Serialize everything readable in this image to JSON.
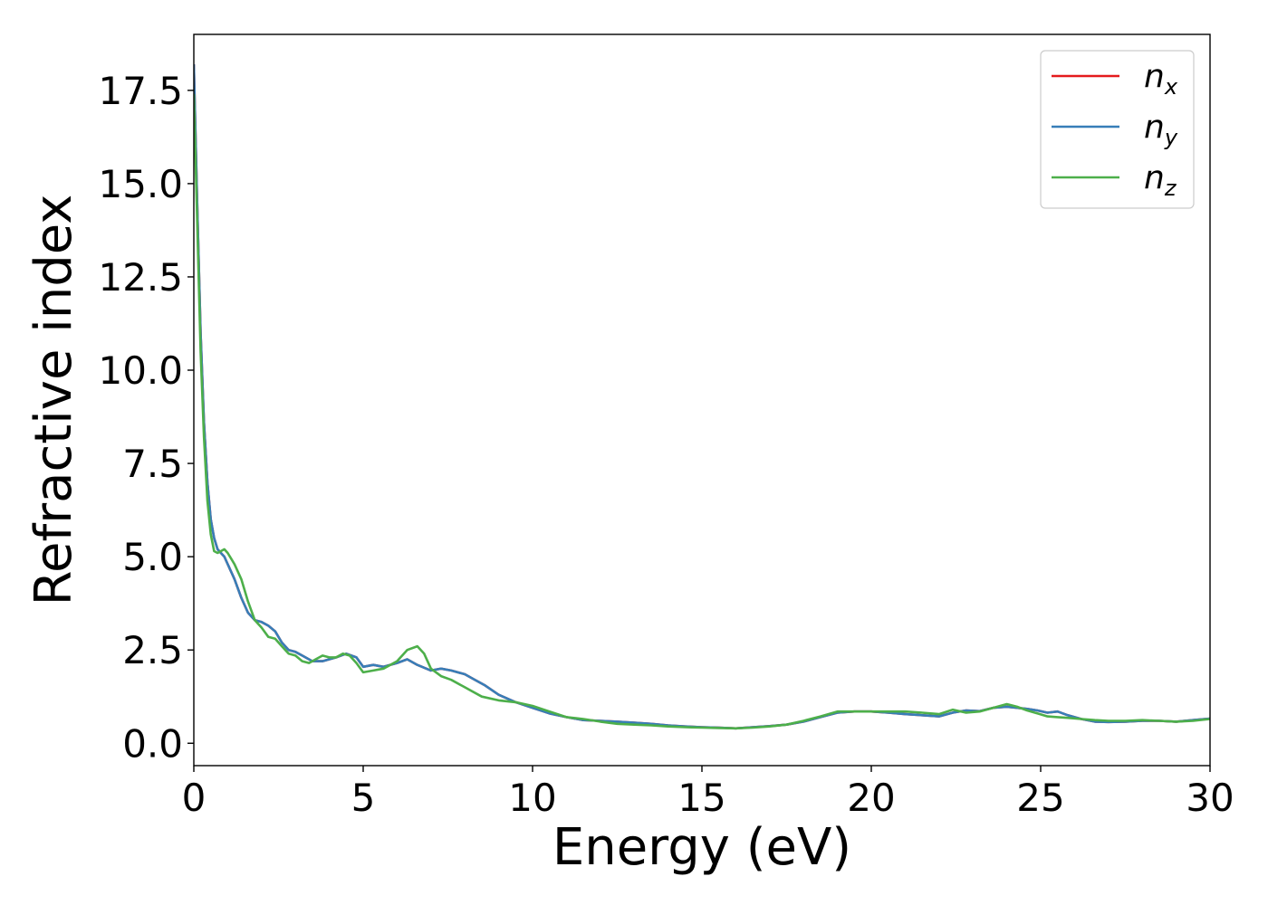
{
  "chart_data": {
    "type": "line",
    "title": "",
    "xlabel": "Energy (eV)",
    "ylabel": "Refractive index",
    "xlim": [
      0,
      30
    ],
    "ylim": [
      -0.6,
      19.0
    ],
    "xticks": [
      0,
      5,
      10,
      15,
      20,
      25,
      30
    ],
    "xtick_labels": [
      "0",
      "5",
      "10",
      "15",
      "20",
      "25",
      "30"
    ],
    "yticks": [
      0.0,
      2.5,
      5.0,
      7.5,
      10.0,
      12.5,
      15.0,
      17.5
    ],
    "ytick_labels": [
      "0.0",
      "2.5",
      "5.0",
      "7.5",
      "10.0",
      "12.5",
      "15.0",
      "17.5"
    ],
    "grid": false,
    "legend_position": "top-right",
    "series": [
      {
        "name": "n",
        "subscript": "x",
        "color": "#e41a1c",
        "x": [
          0,
          0.1,
          0.2,
          0.3,
          0.4,
          0.5,
          0.6,
          0.7,
          0.8,
          0.9,
          1.0,
          1.2,
          1.4,
          1.6,
          1.8,
          2.0,
          2.2,
          2.4,
          2.6,
          2.8,
          3.0,
          3.2,
          3.5,
          3.8,
          4.0,
          4.2,
          4.5,
          4.8,
          5.0,
          5.3,
          5.6,
          6.0,
          6.3,
          6.6,
          7.0,
          7.3,
          7.6,
          8.0,
          8.3,
          8.6,
          9.0,
          9.5,
          10.0,
          10.5,
          11.0,
          11.5,
          12.0,
          12.5,
          13.0,
          13.5,
          14.0,
          14.5,
          15.0,
          15.5,
          16.0,
          16.5,
          17.0,
          17.5,
          18.0,
          18.5,
          19.0,
          19.5,
          20.0,
          20.5,
          21.0,
          21.5,
          22.0,
          22.4,
          22.8,
          23.2,
          23.6,
          24.0,
          24.3,
          24.6,
          24.9,
          25.2,
          25.5,
          25.8,
          26.2,
          26.6,
          27.0,
          27.5,
          28.0,
          28.5,
          29.0,
          29.5,
          30.0
        ],
        "y": [
          18.2,
          14.5,
          11.0,
          8.6,
          7.0,
          6.0,
          5.5,
          5.2,
          5.1,
          5.0,
          4.8,
          4.4,
          3.9,
          3.5,
          3.3,
          3.25,
          3.15,
          3.0,
          2.7,
          2.5,
          2.45,
          2.35,
          2.2,
          2.2,
          2.25,
          2.3,
          2.4,
          2.3,
          2.05,
          2.1,
          2.05,
          2.15,
          2.25,
          2.1,
          1.95,
          2.0,
          1.95,
          1.85,
          1.7,
          1.55,
          1.3,
          1.1,
          0.95,
          0.8,
          0.7,
          0.62,
          0.6,
          0.58,
          0.55,
          0.52,
          0.48,
          0.45,
          0.43,
          0.42,
          0.4,
          0.43,
          0.46,
          0.5,
          0.58,
          0.7,
          0.82,
          0.85,
          0.85,
          0.82,
          0.78,
          0.75,
          0.72,
          0.82,
          0.88,
          0.86,
          0.95,
          0.98,
          0.95,
          0.92,
          0.88,
          0.82,
          0.85,
          0.75,
          0.65,
          0.58,
          0.57,
          0.58,
          0.6,
          0.6,
          0.58,
          0.62,
          0.66
        ]
      },
      {
        "name": "n",
        "subscript": "y",
        "color": "#377eb8",
        "x": [
          0,
          0.1,
          0.2,
          0.3,
          0.4,
          0.5,
          0.6,
          0.7,
          0.8,
          0.9,
          1.0,
          1.2,
          1.4,
          1.6,
          1.8,
          2.0,
          2.2,
          2.4,
          2.6,
          2.8,
          3.0,
          3.2,
          3.5,
          3.8,
          4.0,
          4.2,
          4.5,
          4.8,
          5.0,
          5.3,
          5.6,
          6.0,
          6.3,
          6.6,
          7.0,
          7.3,
          7.6,
          8.0,
          8.3,
          8.6,
          9.0,
          9.5,
          10.0,
          10.5,
          11.0,
          11.5,
          12.0,
          12.5,
          13.0,
          13.5,
          14.0,
          14.5,
          15.0,
          15.5,
          16.0,
          16.5,
          17.0,
          17.5,
          18.0,
          18.5,
          19.0,
          19.5,
          20.0,
          20.5,
          21.0,
          21.5,
          22.0,
          22.4,
          22.8,
          23.2,
          23.6,
          24.0,
          24.3,
          24.6,
          24.9,
          25.2,
          25.5,
          25.8,
          26.2,
          26.6,
          27.0,
          27.5,
          28.0,
          28.5,
          29.0,
          29.5,
          30.0
        ],
        "y": [
          18.2,
          14.5,
          11.0,
          8.6,
          7.0,
          6.0,
          5.5,
          5.2,
          5.1,
          5.0,
          4.8,
          4.4,
          3.9,
          3.5,
          3.3,
          3.25,
          3.15,
          3.0,
          2.7,
          2.5,
          2.45,
          2.35,
          2.2,
          2.2,
          2.25,
          2.3,
          2.4,
          2.3,
          2.05,
          2.1,
          2.05,
          2.15,
          2.25,
          2.1,
          1.95,
          2.0,
          1.95,
          1.85,
          1.7,
          1.55,
          1.3,
          1.1,
          0.95,
          0.8,
          0.7,
          0.62,
          0.6,
          0.58,
          0.55,
          0.52,
          0.48,
          0.45,
          0.43,
          0.42,
          0.4,
          0.43,
          0.46,
          0.5,
          0.58,
          0.7,
          0.82,
          0.85,
          0.85,
          0.82,
          0.78,
          0.75,
          0.72,
          0.82,
          0.88,
          0.86,
          0.95,
          0.98,
          0.95,
          0.92,
          0.88,
          0.82,
          0.85,
          0.75,
          0.65,
          0.58,
          0.57,
          0.58,
          0.6,
          0.6,
          0.58,
          0.62,
          0.66
        ]
      },
      {
        "name": "n",
        "subscript": "z",
        "color": "#4daf4a",
        "x": [
          0,
          0.1,
          0.2,
          0.3,
          0.4,
          0.5,
          0.6,
          0.7,
          0.8,
          0.9,
          1.0,
          1.2,
          1.4,
          1.6,
          1.8,
          2.0,
          2.2,
          2.4,
          2.6,
          2.8,
          3.0,
          3.2,
          3.4,
          3.6,
          3.8,
          4.0,
          4.2,
          4.4,
          4.6,
          4.8,
          5.0,
          5.3,
          5.6,
          6.0,
          6.3,
          6.6,
          6.8,
          7.0,
          7.3,
          7.6,
          8.0,
          8.5,
          9.0,
          9.5,
          10.0,
          10.5,
          11.0,
          11.5,
          12.0,
          12.5,
          13.0,
          13.5,
          14.0,
          14.5,
          15.0,
          15.5,
          16.0,
          16.5,
          17.0,
          17.5,
          18.0,
          18.5,
          19.0,
          19.5,
          20.0,
          20.5,
          21.0,
          21.5,
          22.0,
          22.4,
          22.8,
          23.2,
          23.6,
          24.0,
          24.3,
          24.6,
          24.9,
          25.2,
          25.5,
          25.8,
          26.2,
          26.6,
          27.0,
          27.5,
          28.0,
          28.5,
          29.0,
          29.5,
          30.0
        ],
        "y": [
          17.4,
          14.0,
          10.5,
          8.2,
          6.5,
          5.6,
          5.15,
          5.1,
          5.15,
          5.2,
          5.1,
          4.8,
          4.4,
          3.8,
          3.3,
          3.1,
          2.85,
          2.8,
          2.6,
          2.4,
          2.35,
          2.2,
          2.15,
          2.25,
          2.35,
          2.3,
          2.3,
          2.4,
          2.35,
          2.15,
          1.9,
          1.95,
          2.0,
          2.2,
          2.5,
          2.6,
          2.4,
          2.0,
          1.8,
          1.7,
          1.5,
          1.25,
          1.15,
          1.1,
          1.0,
          0.85,
          0.7,
          0.65,
          0.58,
          0.52,
          0.5,
          0.48,
          0.45,
          0.43,
          0.42,
          0.41,
          0.4,
          0.42,
          0.45,
          0.5,
          0.6,
          0.72,
          0.85,
          0.85,
          0.85,
          0.85,
          0.85,
          0.82,
          0.78,
          0.9,
          0.82,
          0.85,
          0.95,
          1.05,
          0.98,
          0.88,
          0.8,
          0.72,
          0.7,
          0.68,
          0.65,
          0.62,
          0.6,
          0.6,
          0.62,
          0.6,
          0.58,
          0.6,
          0.65
        ]
      }
    ]
  }
}
